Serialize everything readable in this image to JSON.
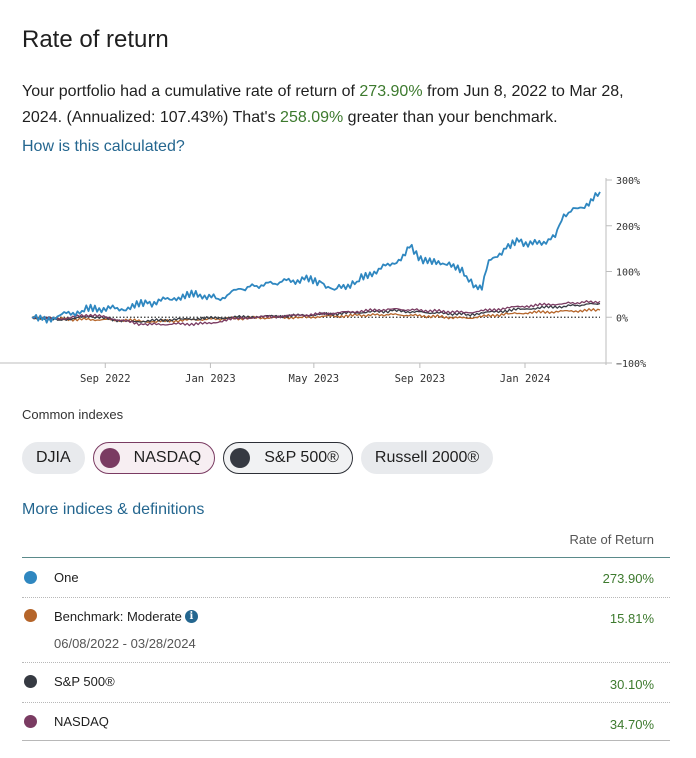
{
  "title": "Rate of return",
  "summary": {
    "part1": "Your portfolio had a cumulative rate of return of ",
    "cumulative": "273.90%",
    "part2": " from Jun 8, 2022 to Mar 28, 2024. (Annualized: 107.43%) That's ",
    "greater": "258.09%",
    "part3": " greater than your benchmark."
  },
  "how_link": "How is this calculated?",
  "colors": {
    "portfolio": "#2f87c0",
    "benchmark": "#b5652a",
    "sp500": "#363a42",
    "nasdaq": "#7a3b62",
    "positive": "#3d7a2e",
    "link": "#24668f"
  },
  "chart_data": {
    "type": "line",
    "x_ticks": [
      "Sep 2022",
      "Jan 2023",
      "May 2023",
      "Sep 2023",
      "Jan 2024"
    ],
    "y_ticks": [
      "300%",
      "200%",
      "100%",
      "0%",
      "−100%"
    ],
    "ylim": [
      -100,
      300
    ],
    "x_range": [
      "2022-06-08",
      "2024-03-28"
    ],
    "series": [
      {
        "name": "One",
        "color": "#2f87c0",
        "points": [
          [
            "2022-06-08",
            0
          ],
          [
            "2022-06-20",
            -6
          ],
          [
            "2022-07-10",
            4
          ],
          [
            "2022-08-05",
            14
          ],
          [
            "2022-08-25",
            20
          ],
          [
            "2022-09-20",
            18
          ],
          [
            "2022-10-20",
            30
          ],
          [
            "2022-11-20",
            42
          ],
          [
            "2022-12-20",
            50
          ],
          [
            "2023-01-10",
            40
          ],
          [
            "2023-02-05",
            62
          ],
          [
            "2023-03-01",
            70
          ],
          [
            "2023-03-25",
            78
          ],
          [
            "2023-04-20",
            82
          ],
          [
            "2023-05-10",
            76
          ],
          [
            "2023-05-25",
            60
          ],
          [
            "2023-06-20",
            78
          ],
          [
            "2023-07-10",
            100
          ],
          [
            "2023-07-31",
            118
          ],
          [
            "2023-08-15",
            135
          ],
          [
            "2023-08-20",
            152
          ],
          [
            "2023-09-10",
            118
          ],
          [
            "2023-10-05",
            120
          ],
          [
            "2023-10-25",
            90
          ],
          [
            "2023-11-05",
            70
          ],
          [
            "2023-11-12",
            60
          ],
          [
            "2023-11-20",
            125
          ],
          [
            "2023-12-10",
            150
          ],
          [
            "2023-12-25",
            165
          ],
          [
            "2024-01-15",
            160
          ],
          [
            "2024-02-05",
            175
          ],
          [
            "2024-02-15",
            225
          ],
          [
            "2024-03-05",
            240
          ],
          [
            "2024-03-20",
            255
          ],
          [
            "2024-03-28",
            274
          ]
        ]
      },
      {
        "name": "Benchmark: Moderate",
        "color": "#b5652a",
        "points": [
          [
            "2022-06-08",
            0
          ],
          [
            "2022-07-10",
            -4
          ],
          [
            "2022-09-20",
            -6
          ],
          [
            "2022-10-25",
            -10
          ],
          [
            "2022-12-20",
            -5
          ],
          [
            "2023-02-05",
            -2
          ],
          [
            "2023-04-15",
            0
          ],
          [
            "2023-06-20",
            4
          ],
          [
            "2023-08-01",
            6
          ],
          [
            "2023-10-25",
            -2
          ],
          [
            "2023-12-15",
            8
          ],
          [
            "2024-02-01",
            12
          ],
          [
            "2024-03-28",
            15.81
          ]
        ]
      },
      {
        "name": "S&P 500®",
        "color": "#363a42",
        "points": [
          [
            "2022-06-08",
            0
          ],
          [
            "2022-07-10",
            -6
          ],
          [
            "2022-08-15",
            2
          ],
          [
            "2022-09-30",
            -10
          ],
          [
            "2022-11-30",
            -4
          ],
          [
            "2023-02-01",
            0
          ],
          [
            "2023-04-15",
            4
          ],
          [
            "2023-07-31",
            14
          ],
          [
            "2023-10-27",
            6
          ],
          [
            "2023-12-29",
            18
          ],
          [
            "2024-02-15",
            24
          ],
          [
            "2024-03-28",
            30.1
          ]
        ]
      },
      {
        "name": "NASDAQ",
        "color": "#7a3b62",
        "points": [
          [
            "2022-06-08",
            0
          ],
          [
            "2022-07-10",
            -4
          ],
          [
            "2022-08-15",
            6
          ],
          [
            "2022-10-15",
            -16
          ],
          [
            "2022-12-28",
            -14
          ],
          [
            "2023-02-01",
            -2
          ],
          [
            "2023-04-15",
            4
          ],
          [
            "2023-07-31",
            18
          ],
          [
            "2023-10-27",
            10
          ],
          [
            "2023-12-29",
            24
          ],
          [
            "2024-02-15",
            30
          ],
          [
            "2024-03-28",
            34.7
          ]
        ]
      }
    ]
  },
  "common_indexes_label": "Common indexes",
  "chips": [
    {
      "label": "DJIA"
    },
    {
      "label": "NASDAQ"
    },
    {
      "label": "S&P 500®"
    },
    {
      "label": "Russell 2000®"
    }
  ],
  "more_link": "More indices & definitions",
  "table": {
    "header": "Rate of Return",
    "rows": [
      {
        "name": "One",
        "value": "273.90%"
      },
      {
        "name": "Benchmark: Moderate",
        "value": "15.81%",
        "sub": "06/08/2022 - 03/28/2024"
      },
      {
        "name": "S&P 500®",
        "value": "30.10%"
      },
      {
        "name": "NASDAQ",
        "value": "34.70%"
      }
    ]
  }
}
